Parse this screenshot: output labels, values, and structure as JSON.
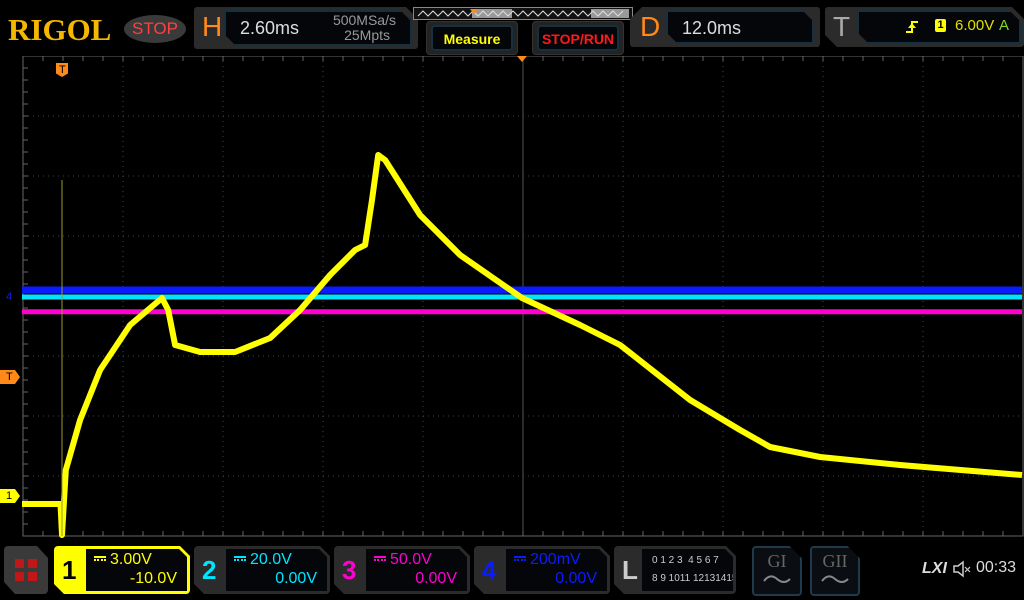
{
  "header": {
    "logo": "RIGOL",
    "run_state": "STOP",
    "horizontal": {
      "letter": "H",
      "timebase": "2.60ms",
      "sample_rate": "500MSa/s",
      "memory_depth": "25Mpts"
    },
    "measure_label": "Measure",
    "stop_run_label": "STOP/RUN",
    "delay": {
      "letter": "D",
      "value": "12.0ms"
    },
    "trigger": {
      "letter": "T",
      "source": "1",
      "level": "6.00V",
      "mode": "A",
      "slope_icon": "rising-edge-icon"
    }
  },
  "channels": [
    {
      "num": "1",
      "scale": "3.00V",
      "offset": "-10.0V",
      "color": "#ffff00",
      "active": true
    },
    {
      "num": "2",
      "scale": "20.0V",
      "offset": "0.00V",
      "color": "#00e5ff"
    },
    {
      "num": "3",
      "scale": "50.0V",
      "offset": "0.00V",
      "color": "#ff00d0"
    },
    {
      "num": "4",
      "scale": "200mV",
      "offset": "0.00V",
      "color": "#0a1cff"
    }
  ],
  "logic": {
    "letter": "L",
    "row1": "0 1 2 3  4 5 6 7",
    "row2": "8 9 1011 12131415"
  },
  "generators": [
    {
      "label": "GI",
      "icon": "sine-wave-icon"
    },
    {
      "label": "GII",
      "icon": "sine-wave-icon"
    }
  ],
  "status": {
    "lxi": "LXI",
    "sound_icon": "speaker-muted-icon",
    "time": "00:33"
  },
  "markers": {
    "trigger_pos": "T",
    "ch4": "4",
    "trigger_level": "T",
    "ch1": "1"
  },
  "colors": {
    "ch1": "#ffff00",
    "ch2": "#00e5ff",
    "ch3": "#ff00d0",
    "ch4": "#0a1cff",
    "accent": "#ff8a1a"
  },
  "chart_data": {
    "type": "line",
    "x_unit": "ms",
    "y_unit": "V",
    "xlim": [
      -1.0,
      25.0
    ],
    "grid": true,
    "series": [
      {
        "channel": "1",
        "color": "#ffff00",
        "x": [
          -1.0,
          0.0,
          0.04,
          0.14,
          0.51,
          1.03,
          1.81,
          2.64,
          2.8,
          2.98,
          3.63,
          4.54,
          5.45,
          6.23,
          7.01,
          7.66,
          7.92,
          8.1,
          8.26,
          8.44,
          9.35,
          10.39,
          12.0,
          13.51,
          14.55,
          16.37,
          17.67,
          18.45,
          19.75,
          21.83,
          25.0
        ],
        "y": [
          -0.4,
          -0.4,
          -1.95,
          1.3,
          3.8,
          6.3,
          8.55,
          9.9,
          9.3,
          7.55,
          7.2,
          7.2,
          7.9,
          9.3,
          11.05,
          12.3,
          12.55,
          14.8,
          17.05,
          16.8,
          14.05,
          12.05,
          9.9,
          8.55,
          7.55,
          4.8,
          3.3,
          2.45,
          1.95,
          1.55,
          1.05
        ]
      },
      {
        "channel": "2",
        "color": "#00e5ff",
        "x": [
          -1.0,
          25.0
        ],
        "y": [
          0.0,
          0.0
        ]
      },
      {
        "channel": "3",
        "color": "#ff00d0",
        "x": [
          -1.0,
          25.0
        ],
        "y": [
          -6.5,
          -6.5
        ]
      },
      {
        "channel": "4",
        "color": "#0a1cff",
        "x": [
          -1.0,
          25.0
        ],
        "y": [
          0.02,
          0.02
        ]
      }
    ]
  }
}
